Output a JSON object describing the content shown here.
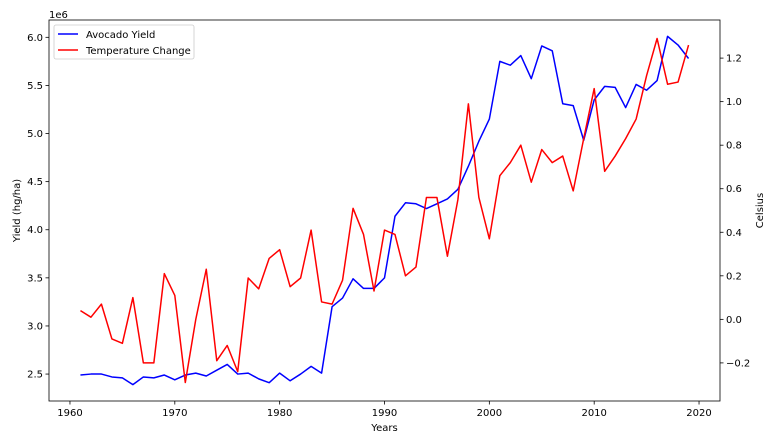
{
  "chart_data": {
    "type": "line",
    "x": [
      1961,
      1962,
      1963,
      1964,
      1965,
      1966,
      1967,
      1968,
      1969,
      1970,
      1971,
      1972,
      1973,
      1974,
      1975,
      1976,
      1977,
      1978,
      1979,
      1980,
      1981,
      1982,
      1983,
      1984,
      1985,
      1986,
      1987,
      1988,
      1989,
      1990,
      1991,
      1992,
      1993,
      1994,
      1995,
      1996,
      1997,
      1998,
      1999,
      2000,
      2001,
      2002,
      2003,
      2004,
      2005,
      2006,
      2007,
      2008,
      2009,
      2010,
      2011,
      2012,
      2013,
      2014,
      2015,
      2016,
      2017,
      2018,
      2019
    ],
    "xlabel": "Years",
    "xlim": [
      1958,
      2022
    ],
    "xticks": [
      "1960",
      "1970",
      "1980",
      "1990",
      "2000",
      "2010",
      "2020"
    ],
    "left_axis": {
      "label": "Yield (hg/ha)",
      "multiplier": "1e6",
      "ylim": [
        2.22,
        6.18
      ],
      "ticks": [
        "2.5",
        "3.0",
        "3.5",
        "4.0",
        "4.5",
        "5.0",
        "5.5",
        "6.0"
      ]
    },
    "right_axis": {
      "label": "Celsius",
      "ylim": [
        -0.375,
        1.375
      ],
      "ticks": [
        "−0.2",
        "0.0",
        "0.2",
        "0.4",
        "0.6",
        "0.8",
        "1.0",
        "1.2"
      ]
    },
    "series": [
      {
        "name": "Avocado Yield",
        "axis": "left",
        "color": "#0000ff",
        "values": [
          2.49,
          2.5,
          2.5,
          2.47,
          2.46,
          2.39,
          2.47,
          2.46,
          2.49,
          2.44,
          2.49,
          2.51,
          2.48,
          2.54,
          2.6,
          2.5,
          2.51,
          2.45,
          2.41,
          2.51,
          2.43,
          2.5,
          2.58,
          2.51,
          3.2,
          3.29,
          3.49,
          3.39,
          3.39,
          3.5,
          4.14,
          4.28,
          4.27,
          4.22,
          4.27,
          4.32,
          4.42,
          4.66,
          4.92,
          5.15,
          5.75,
          5.71,
          5.81,
          5.57,
          5.91,
          5.86,
          5.31,
          5.29,
          4.93,
          5.35,
          5.49,
          5.48,
          5.27,
          5.51,
          5.45,
          5.55,
          6.01,
          5.92,
          5.78
        ]
      },
      {
        "name": "Temperature Change",
        "axis": "right",
        "color": "#ff0000",
        "values": [
          0.04,
          0.01,
          0.07,
          -0.09,
          -0.11,
          0.1,
          -0.2,
          -0.2,
          0.21,
          0.11,
          -0.29,
          0.0,
          0.23,
          -0.19,
          -0.12,
          -0.24,
          0.19,
          0.14,
          0.28,
          0.32,
          0.15,
          0.19,
          0.41,
          0.08,
          0.07,
          0.18,
          0.51,
          0.39,
          0.13,
          0.41,
          0.39,
          0.2,
          0.24,
          0.56,
          0.56,
          0.29,
          0.55,
          0.99,
          0.56,
          0.37,
          0.66,
          0.72,
          0.8,
          0.63,
          0.78,
          0.72,
          0.75,
          0.59,
          0.83,
          1.06,
          0.68,
          0.75,
          0.83,
          0.92,
          1.12,
          1.29,
          1.08,
          1.09,
          1.26
        ]
      }
    ],
    "legend_position": "top-left",
    "grid": false
  }
}
